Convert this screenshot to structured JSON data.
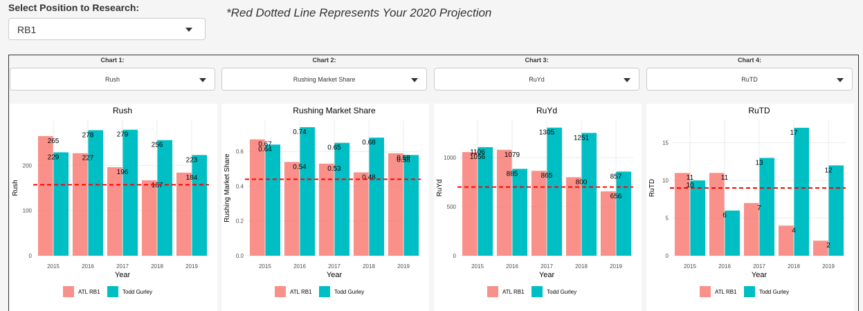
{
  "header": {
    "select_label": "Select Position to Research:",
    "position_value": "RB1",
    "note": "*Red Dotted Line Represents Your 2020 Projection"
  },
  "colors": {
    "atl": "#F8766D",
    "gurley": "#00BFC4",
    "projection": "#FF0000",
    "grid": "#EBEBEB"
  },
  "charts": [
    {
      "label": "Chart 1:",
      "selected": "Rush"
    },
    {
      "label": "Chart 2:",
      "selected": "Rushing Market Share"
    },
    {
      "label": "Chart 3:",
      "selected": "RuYd"
    },
    {
      "label": "Chart 4:",
      "selected": "RuTD"
    }
  ],
  "chart_data": [
    {
      "type": "bar",
      "title": "Rush",
      "xlabel": "Year",
      "ylabel": "Rush",
      "categories": [
        "2015",
        "2016",
        "2017",
        "2018",
        "2019"
      ],
      "ylim": [
        0,
        300
      ],
      "yticks": [
        0,
        100,
        200
      ],
      "projection": 157,
      "series": [
        {
          "name": "ATL RB1",
          "values": [
            265,
            227,
            196,
            167,
            184
          ]
        },
        {
          "name": "Todd Gurley",
          "values": [
            229,
            278,
            279,
            256,
            223
          ]
        }
      ],
      "legend": "bottom"
    },
    {
      "type": "bar",
      "title": "Rushing Market Share",
      "xlabel": "Year",
      "ylabel": "Rushing Market Share",
      "categories": [
        "2015",
        "2016",
        "2017",
        "2018",
        "2019"
      ],
      "ylim": [
        0,
        0.78
      ],
      "yticks": [
        "0.0",
        "0.2",
        "0.4",
        "0.6"
      ],
      "projection": 0.44,
      "series": [
        {
          "name": "ATL RB1",
          "values": [
            "0.67",
            "0.54",
            "0.53",
            "0.48",
            "0.59"
          ]
        },
        {
          "name": "Todd Gurley",
          "values": [
            "0.64",
            "0.74",
            "0.65",
            "0.68",
            "0.58"
          ]
        }
      ],
      "legend": "bottom"
    },
    {
      "type": "bar",
      "title": "RuYd",
      "xlabel": "Year",
      "ylabel": "RuYd",
      "categories": [
        "2015",
        "2016",
        "2017",
        "2018",
        "2019"
      ],
      "ylim": [
        0,
        1380
      ],
      "yticks": [
        0,
        500,
        1000
      ],
      "projection": 700,
      "series": [
        {
          "name": "ATL RB1",
          "values": [
            1056,
            1079,
            865,
            800,
            656
          ]
        },
        {
          "name": "Todd Gurley",
          "values": [
            1106,
            885,
            1305,
            1251,
            857
          ]
        }
      ],
      "legend": "bottom"
    },
    {
      "type": "bar",
      "title": "RuTD",
      "xlabel": "Year",
      "ylabel": "RuTD",
      "categories": [
        "2015",
        "2016",
        "2017",
        "2018",
        "2019"
      ],
      "ylim": [
        0,
        18
      ],
      "yticks": [
        0,
        5,
        10,
        15
      ],
      "projection": 9,
      "series": [
        {
          "name": "ATL RB1",
          "values": [
            11,
            11,
            7,
            4,
            2
          ]
        },
        {
          "name": "Todd Gurley",
          "values": [
            10,
            6,
            13,
            17,
            12
          ]
        }
      ],
      "legend": "bottom"
    }
  ]
}
